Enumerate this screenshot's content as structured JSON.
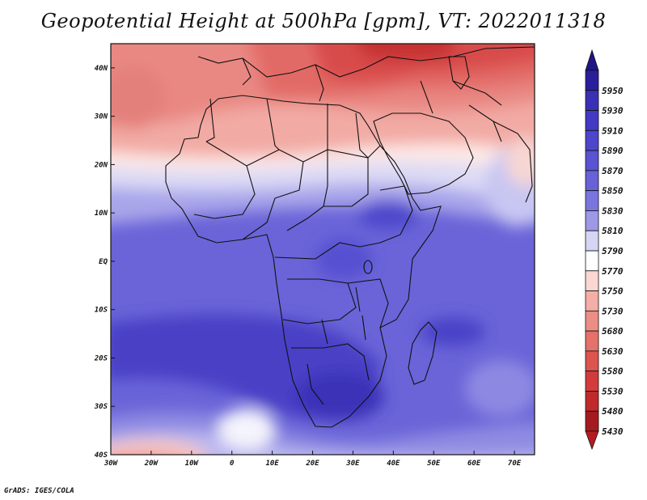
{
  "title": "Geopotential Height at 500hPa [gpm], VT: 2022011318",
  "credit": "GrADS: IGES/COLA",
  "map": {
    "lon_range": [
      -30,
      75
    ],
    "lat_range": [
      -40,
      45
    ],
    "lat_ticks": [
      {
        "value": 40,
        "label": "40N"
      },
      {
        "value": 30,
        "label": "30N"
      },
      {
        "value": 20,
        "label": "20N"
      },
      {
        "value": 10,
        "label": "10N"
      },
      {
        "value": 0,
        "label": "EQ"
      },
      {
        "value": -10,
        "label": "10S"
      },
      {
        "value": -20,
        "label": "20S"
      },
      {
        "value": -30,
        "label": "30S"
      },
      {
        "value": -40,
        "label": "40S"
      }
    ],
    "lon_ticks": [
      {
        "value": -30,
        "label": "30W"
      },
      {
        "value": -20,
        "label": "20W"
      },
      {
        "value": -10,
        "label": "10W"
      },
      {
        "value": 0,
        "label": "0"
      },
      {
        "value": 10,
        "label": "10E"
      },
      {
        "value": 20,
        "label": "20E"
      },
      {
        "value": 30,
        "label": "30E"
      },
      {
        "value": 40,
        "label": "40E"
      },
      {
        "value": 50,
        "label": "50E"
      },
      {
        "value": 60,
        "label": "60E"
      },
      {
        "value": 70,
        "label": "70E"
      }
    ]
  },
  "colorbar": {
    "levels": [
      {
        "label": "5950",
        "color": "#2a1f9a"
      },
      {
        "label": "5930",
        "color": "#3a30b6"
      },
      {
        "label": "5910",
        "color": "#4339c4"
      },
      {
        "label": "5890",
        "color": "#4d45cc"
      },
      {
        "label": "5870",
        "color": "#5a53d2"
      },
      {
        "label": "5850",
        "color": "#6862d8"
      },
      {
        "label": "5830",
        "color": "#7a75de"
      },
      {
        "label": "5810",
        "color": "#9d99e6"
      },
      {
        "label": "5790",
        "color": "#d6d5f4"
      },
      {
        "label": "5770",
        "color": "#ffffff"
      },
      {
        "label": "5750",
        "color": "#fbd7d2"
      },
      {
        "label": "5730",
        "color": "#f4aea6"
      },
      {
        "label": "5680",
        "color": "#ec8e86"
      },
      {
        "label": "5630",
        "color": "#e4716a"
      },
      {
        "label": "5580",
        "color": "#dc5450"
      },
      {
        "label": "5530",
        "color": "#d23c3c"
      },
      {
        "label": "5480",
        "color": "#c02a2c"
      },
      {
        "label": "5430",
        "color": "#a51a1f"
      }
    ]
  }
}
